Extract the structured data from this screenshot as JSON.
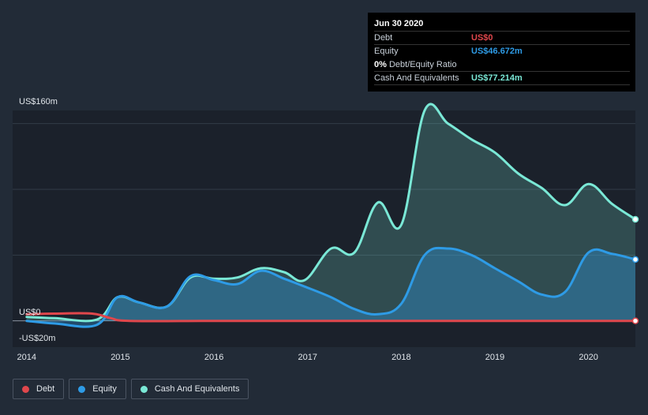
{
  "colors": {
    "debt": "#e0474c",
    "equity": "#2e9be6",
    "cash": "#7ae8d6",
    "background": "#222b37",
    "plot_background": "#1b212b"
  },
  "tooltip": {
    "date": "Jun 30 2020",
    "debt_label": "Debt",
    "debt_value": "US$0",
    "equity_label": "Equity",
    "equity_value": "US$46.672m",
    "ratio_value": "0%",
    "ratio_label": "Debt/Equity Ratio",
    "cash_label": "Cash And Equivalents",
    "cash_value": "US$77.214m"
  },
  "legend": {
    "debt": "Debt",
    "equity": "Equity",
    "cash": "Cash And Equivalents"
  },
  "chart_data": {
    "type": "area",
    "title": "",
    "xlabel": "",
    "ylabel": "",
    "ylim": [
      -20,
      160
    ],
    "xlim": [
      2013.85,
      2020.5
    ],
    "y_tick_labels": [
      {
        "value": 160,
        "label": "US$160m"
      },
      {
        "value": 0,
        "label": "US$0"
      },
      {
        "value": -20,
        "label": "-US$20m"
      }
    ],
    "gridlines": [
      150,
      100,
      50,
      0
    ],
    "x_ticks": [
      2014,
      2015,
      2016,
      2017,
      2018,
      2019,
      2020
    ],
    "x_tick_labels": [
      "2014",
      "2015",
      "2016",
      "2017",
      "2018",
      "2019",
      "2020"
    ],
    "series": [
      {
        "name": "Cash And Equivalents",
        "key": "cash",
        "points": [
          [
            2014.0,
            3
          ],
          [
            2014.3,
            2
          ],
          [
            2014.75,
            1
          ],
          [
            2014.97,
            18
          ],
          [
            2015.2,
            14
          ],
          [
            2015.5,
            11
          ],
          [
            2015.75,
            33
          ],
          [
            2016.0,
            32
          ],
          [
            2016.25,
            33
          ],
          [
            2016.5,
            40
          ],
          [
            2016.75,
            37
          ],
          [
            2016.97,
            31
          ],
          [
            2017.25,
            55
          ],
          [
            2017.5,
            52
          ],
          [
            2017.75,
            90
          ],
          [
            2018.0,
            73
          ],
          [
            2018.25,
            160
          ],
          [
            2018.5,
            150
          ],
          [
            2018.75,
            138
          ],
          [
            2019.0,
            128
          ],
          [
            2019.25,
            112
          ],
          [
            2019.5,
            101
          ],
          [
            2019.75,
            88
          ],
          [
            2020.0,
            104
          ],
          [
            2020.25,
            89
          ],
          [
            2020.5,
            77.214
          ]
        ]
      },
      {
        "name": "Equity",
        "key": "equity",
        "points": [
          [
            2014.0,
            0
          ],
          [
            2014.3,
            -2
          ],
          [
            2014.75,
            -3
          ],
          [
            2014.97,
            18
          ],
          [
            2015.2,
            14
          ],
          [
            2015.5,
            11
          ],
          [
            2015.75,
            34
          ],
          [
            2016.0,
            31
          ],
          [
            2016.25,
            28
          ],
          [
            2016.5,
            38
          ],
          [
            2016.75,
            32
          ],
          [
            2016.97,
            26
          ],
          [
            2017.25,
            18
          ],
          [
            2017.5,
            9
          ],
          [
            2017.75,
            5
          ],
          [
            2018.0,
            13
          ],
          [
            2018.25,
            50
          ],
          [
            2018.5,
            55
          ],
          [
            2018.75,
            50
          ],
          [
            2019.0,
            40
          ],
          [
            2019.25,
            30
          ],
          [
            2019.5,
            20
          ],
          [
            2019.75,
            22
          ],
          [
            2020.0,
            52
          ],
          [
            2020.25,
            51
          ],
          [
            2020.5,
            46.672
          ]
        ]
      },
      {
        "name": "Debt",
        "key": "debt",
        "points": [
          [
            2014.0,
            5
          ],
          [
            2014.3,
            5.5
          ],
          [
            2014.7,
            5.5
          ],
          [
            2014.9,
            2
          ],
          [
            2015.1,
            0
          ],
          [
            2016.0,
            0
          ],
          [
            2017.0,
            0
          ],
          [
            2018.0,
            0
          ],
          [
            2019.0,
            0
          ],
          [
            2020.0,
            0
          ],
          [
            2020.5,
            0
          ]
        ]
      }
    ]
  }
}
